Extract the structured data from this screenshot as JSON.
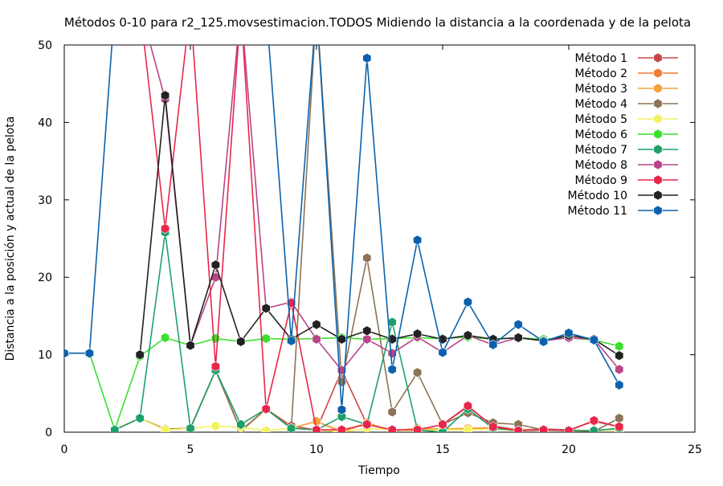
{
  "chart_data": {
    "type": "line",
    "title": "Métodos 0-10 para r2_125.movsestimacion.TODOS Midiendo la distancia a la coordenada y de la pelota",
    "xlabel": "Tiempo",
    "ylabel": "Distancia a la posición y actual de la pelota",
    "xlim": [
      0,
      25
    ],
    "ylim": [
      0,
      50
    ],
    "x_ticks": [
      "0",
      "5",
      "10",
      "15",
      "20",
      "25"
    ],
    "y_ticks": [
      "0",
      "10",
      "20",
      "30",
      "40",
      "50"
    ],
    "grid": false,
    "legend_position": "top-right",
    "series": [
      {
        "name": "Método 1",
        "color": "#c8474a",
        "x": [
          2,
          3,
          4,
          5,
          6,
          7,
          8,
          9,
          10,
          11,
          12,
          13,
          14,
          15,
          16,
          17,
          18,
          19,
          20,
          21,
          22
        ],
        "y": [
          0.3,
          1.8,
          0.3,
          0.5,
          8.0,
          0.2,
          3.0,
          0.8,
          0.3,
          8.0,
          1.0,
          0.3,
          0.3,
          1.0,
          3.3,
          0.8,
          0.3,
          0.4,
          0.3,
          1.4,
          0.7
        ]
      },
      {
        "name": "Método 2",
        "color": "#f07b35",
        "x": [
          2,
          3,
          4,
          5,
          6,
          7,
          8,
          9,
          10,
          11,
          12,
          13,
          14,
          15,
          16,
          17,
          18,
          19,
          20,
          21,
          22
        ],
        "y": [
          0.3,
          1.8,
          0.4,
          0.5,
          8.0,
          0.1,
          3.0,
          0.5,
          1.4,
          0.0,
          1.2,
          0.1,
          0.5,
          0.3,
          0.5,
          0.5,
          0.2,
          0.3,
          0.2,
          0.1,
          0.5
        ]
      },
      {
        "name": "Método 3",
        "color": "#f6a23a",
        "x": [
          2,
          3,
          4,
          5,
          6,
          7,
          8,
          9,
          10,
          11,
          12,
          13,
          14,
          15,
          16,
          17,
          18,
          19,
          20,
          21,
          22
        ],
        "y": [
          0.3,
          1.8,
          0.4,
          0.5,
          8.0,
          0.2,
          3.0,
          0.5,
          1.4,
          0.1,
          1.2,
          0.2,
          0.5,
          0.4,
          0.5,
          0.6,
          0.3,
          0.3,
          0.2,
          0.2,
          0.5
        ]
      },
      {
        "name": "Método 4",
        "color": "#8b7455",
        "x": [
          2,
          3,
          4,
          5,
          6,
          7,
          8,
          9,
          10,
          11,
          12,
          13,
          14,
          15,
          16,
          17,
          18,
          19,
          20,
          21,
          22
        ],
        "y": [
          0.3,
          1.8,
          0.4,
          0.5,
          8.0,
          0.2,
          3.0,
          0.5,
          55,
          6.5,
          22.5,
          2.6,
          7.7,
          1.0,
          2.5,
          1.2,
          1.0,
          0.3,
          0.3,
          0.1,
          1.8
        ]
      },
      {
        "name": "Método 5",
        "color": "#f2f25e",
        "x": [
          2,
          3,
          4,
          5,
          6,
          7,
          8,
          9,
          10,
          11,
          12,
          13,
          14,
          15,
          16,
          17,
          18,
          19,
          20,
          21,
          22
        ],
        "y": [
          0.3,
          1.8,
          0.3,
          0.5,
          0.8,
          0.6,
          0.2,
          0.5,
          0.3,
          0.0,
          0.5,
          0.3,
          0.2,
          0.3,
          0.3,
          0.4,
          0.2,
          0.3,
          0.2,
          0.2,
          0.3
        ]
      },
      {
        "name": "Método 6",
        "color": "#3ae02d",
        "x": [
          0,
          1,
          2,
          3,
          4,
          5,
          6,
          7,
          8,
          9,
          10,
          11,
          12,
          13,
          14,
          15,
          16,
          17,
          18,
          19,
          20,
          21,
          22
        ],
        "y": [
          10.2,
          10.2,
          0.3,
          9.8,
          12.2,
          11.2,
          12.1,
          11.7,
          12.1,
          12.0,
          12.1,
          12.2,
          12.0,
          12.1,
          12.2,
          12.1,
          12.3,
          12.0,
          12.2,
          12.0,
          12.2,
          11.9,
          11.1
        ]
      },
      {
        "name": "Método 7",
        "color": "#1ea06a",
        "x": [
          2,
          3,
          4,
          5,
          6,
          7,
          8,
          9,
          10,
          11,
          12,
          13,
          14,
          15,
          16,
          17,
          18,
          19,
          20,
          21,
          22
        ],
        "y": [
          0.3,
          1.8,
          25.8,
          0.5,
          8.0,
          1.0,
          3.0,
          0.5,
          0.3,
          2.0,
          1.0,
          14.2,
          0.3,
          0.0,
          3.0,
          0.5,
          0.2,
          0.3,
          0.2,
          0.2,
          0.5
        ]
      },
      {
        "name": "Método 8",
        "color": "#b8448a",
        "x": [
          3,
          4,
          5,
          6,
          7,
          8,
          9,
          10,
          11,
          12,
          13,
          14,
          15,
          16,
          17,
          18,
          19,
          20,
          21,
          22
        ],
        "y": [
          55,
          43.0,
          11.2,
          20.0,
          55,
          16.0,
          16.8,
          12.0,
          8.0,
          12.0,
          10.2,
          12.3,
          10.3,
          12.5,
          11.3,
          12.2,
          11.8,
          12.2,
          12.0,
          8.1
        ]
      },
      {
        "name": "Método 9",
        "color": "#e8264a",
        "x": [
          3,
          4,
          5,
          6,
          7,
          8,
          9,
          10,
          11,
          12,
          13,
          14,
          15,
          16,
          17,
          18,
          19,
          20,
          21,
          22
        ],
        "y": [
          55,
          26.3,
          55,
          8.5,
          55,
          3.0,
          16.7,
          0.3,
          0.3,
          1.0,
          0.3,
          0.3,
          1.0,
          3.4,
          0.7,
          0.2,
          0.3,
          0.2,
          1.5,
          0.7
        ]
      },
      {
        "name": "Método 10",
        "color": "#222222",
        "x": [
          3,
          4,
          5,
          6,
          7,
          8,
          9,
          10,
          11,
          12,
          13,
          14,
          15,
          16,
          17,
          18,
          19,
          20,
          21,
          22
        ],
        "y": [
          10.0,
          43.5,
          11.2,
          21.6,
          11.7,
          16.0,
          12.0,
          13.9,
          12.0,
          13.1,
          12.0,
          12.7,
          12.0,
          12.5,
          12.0,
          12.2,
          11.8,
          12.5,
          12.0,
          9.9
        ]
      },
      {
        "name": "Método 11",
        "color": "#0b62ac",
        "x": [
          0,
          1,
          2,
          3,
          4,
          5,
          6,
          7,
          8,
          9,
          10,
          11,
          12,
          13,
          14,
          15,
          16,
          17,
          18,
          19,
          20,
          21,
          22
        ],
        "y": [
          10.2,
          10.2,
          55,
          55,
          55,
          55,
          55,
          55,
          55,
          11.8,
          55,
          2.9,
          48.3,
          8.1,
          24.8,
          10.3,
          16.8,
          11.3,
          13.9,
          11.7,
          12.8,
          11.9,
          6.1
        ]
      }
    ]
  }
}
